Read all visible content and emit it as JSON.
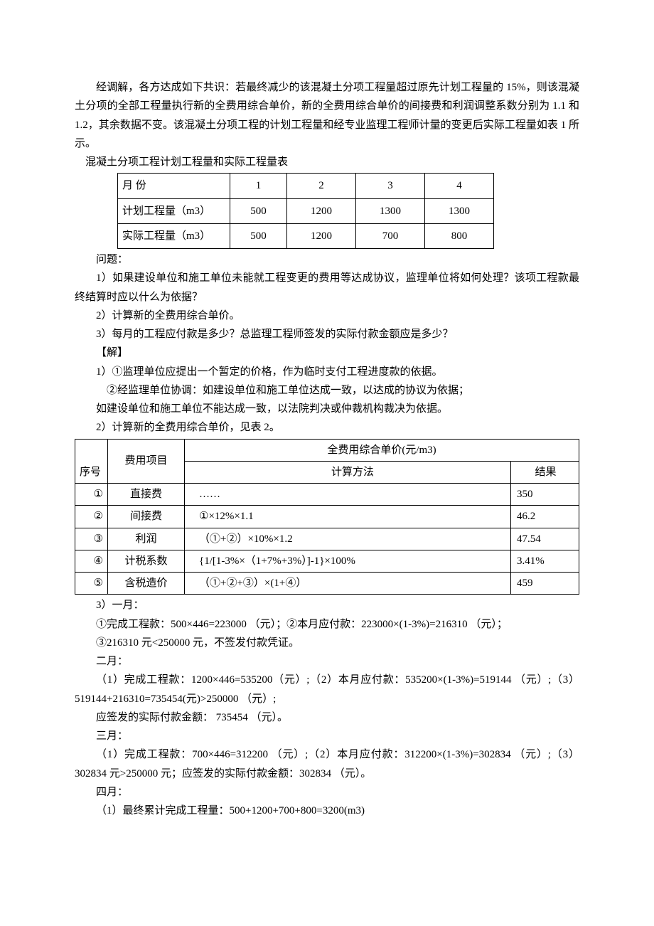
{
  "intro": {
    "p1": "经调解，各方达成如下共识：若最终减少的该混凝土分项工程量超过原先计划工程量的 15%，则该混凝土分项的全部工程量执行新的全费用综合单价，新的全费用综合单价的间接费和利润调整系数分别为 1.1 和 1.2，其余数据不变。该混凝土分项工程的计划工程量和经专业监理工程师计量的变更后实际工程量如表 1 所示。",
    "table1_title": "混凝土分项工程计划工程量和实际工程量表"
  },
  "table1": {
    "rowhdr_month": "月        份",
    "rowhdr_plan": "计划工程量（m3）",
    "rowhdr_actual": "实际工程量（m3）",
    "months": [
      "1",
      "2",
      "3",
      "4"
    ],
    "plan": [
      "500",
      "1200",
      "1300",
      "1300"
    ],
    "actual": [
      "500",
      "1200",
      "700",
      "800"
    ]
  },
  "questions": {
    "title": "问题：",
    "q1": "1）如果建设单位和施工单位未能就工程变更的费用等达成协议，监理单位将如何处理？该项工程款最终结算时应以什么为依据？",
    "q2": "2）计算新的全费用综合单价。",
    "q3": "3）每月的工程应付款是多少？总监理工程师签发的实际付款金额应是多少？"
  },
  "answer": {
    "title": "【解】",
    "a1a": "1）①监理单位应提出一个暂定的价格，作为临时支付工程进度款的依据。",
    "a1b": "②经监理单位协调：如建设单位和施工单位达成一致，以达成的协议为依据；",
    "a1c": "如建设单位和施工单位不能达成一致，以法院判决或仲裁机构裁决为依据。",
    "a2": "2）计算新的全费用综合单价，见表 2。"
  },
  "table2": {
    "seq_hdr": "序号",
    "item_hdr": "费用项目",
    "span_hdr": "全费用综合单价(元/m3)",
    "method_hdr": "计算方法",
    "result_hdr": "结果",
    "rows": [
      {
        "seq": "①",
        "item": "直接费",
        "method": "……",
        "result": "350"
      },
      {
        "seq": "②",
        "item": "间接费",
        "method": "①×12%×1.1",
        "result": "46.2"
      },
      {
        "seq": "③",
        "item": "利润",
        "method": "（①+②）×10%×1.2",
        "result": "47.54"
      },
      {
        "seq": "④",
        "item": "计税系数",
        "method": "{1/[1-3%×（1+7%+3%）]-1}×100%",
        "result": "3.41%"
      },
      {
        "seq": "⑤",
        "item": "含税造价",
        "method": "（①+②+③）×(1+④）",
        "result": "459"
      }
    ]
  },
  "calc": {
    "a3": "3）一月：",
    "m1a": "①完成工程款：500×446=223000 （元）；②本月应付款：223000×(1-3%)=216310 （元）；",
    "m1b": "③216310 元<250000 元，不签发付款凭证。",
    "m2h": "二月：",
    "m2a": "（1）完成工程款：1200×446=535200（元）;（2）本月应付款：535200×(1-3%)=519144 （元）;（3）519144+216310=735454(元)>250000 （元）;",
    "m2b": "应签发的实际付款金额： 735454 （元）。",
    "m3h": "三月：",
    "m3a": "（1）完成工程款：700×446=312200 （元）;（2）本月应付款：312200×(1-3%)=302834 （元）;（3）302834 元>250000 元；应签发的实际付款金额：302834 （元）。",
    "m4h": "四月：",
    "m4a": "（1）最终累计完成工程量：500+1200+700+800=3200(m3)"
  }
}
